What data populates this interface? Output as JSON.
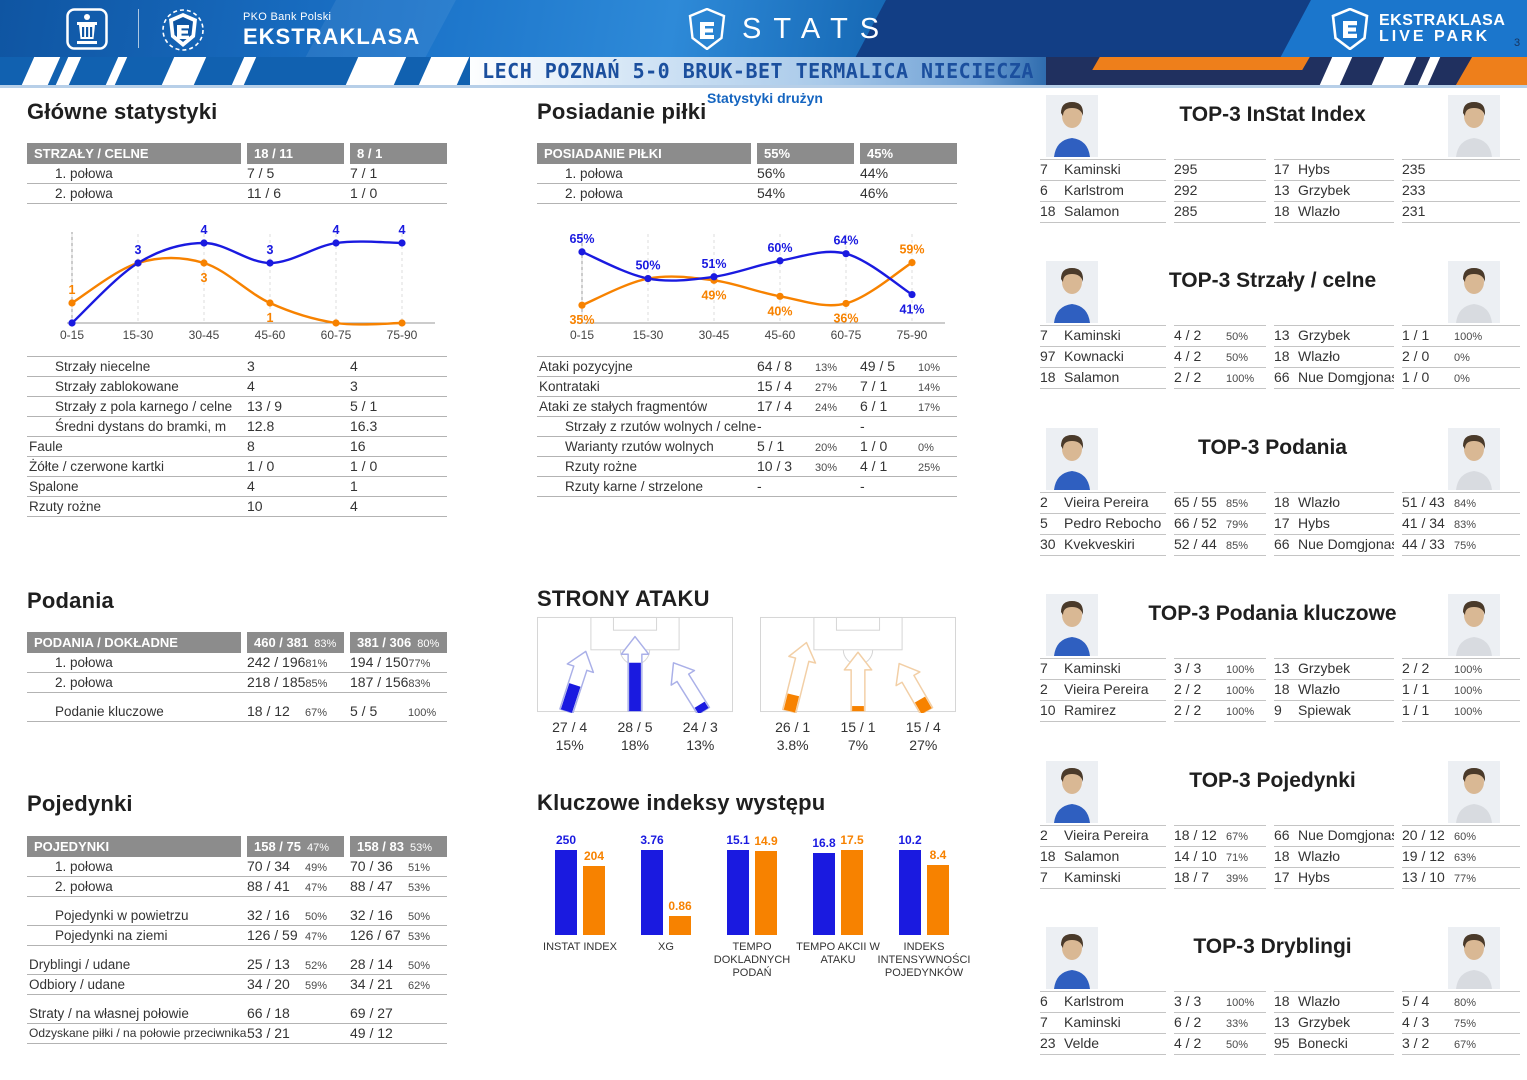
{
  "header": {
    "pko_sub": "PKO Bank Polski",
    "pko_main": "EKSTRAKLASA",
    "stats": "STATS",
    "live_park_line1": "EKSTRAKLASA",
    "live_park_line2": "LIVE PARK",
    "page_number": "3"
  },
  "title_bar": {
    "match": "LECH POZNAŃ 5-0 BRUK-BET TERMALICA NIECIECZA",
    "subtitle": "Statystyki drużyn"
  },
  "colors": {
    "home": "#1a1ae0",
    "away": "#f78200",
    "home_outline": "#aab0e8",
    "away_outline": "#f2cfa6"
  },
  "main_stats": {
    "heading": "Główne statystyki",
    "header": {
      "label": "STRZAŁY / CELNE",
      "home": "18 / 11",
      "away": "8 / 1"
    },
    "half_rows": [
      {
        "label": "1. połowa",
        "home": "7 / 5",
        "away": "7 / 1",
        "indent": true
      },
      {
        "label": "2. połowa",
        "home": "11 / 6",
        "away": "1 / 0",
        "indent": true
      }
    ],
    "chart": {
      "categories": [
        "0-15",
        "15-30",
        "30-45",
        "45-60",
        "60-75",
        "75-90"
      ],
      "ylim": [
        0,
        4
      ],
      "home": {
        "values": [
          0,
          3,
          4,
          3,
          4,
          4
        ],
        "labels": [
          "",
          "3",
          "4",
          "3",
          "4",
          "4"
        ],
        "label_pos": [
          "",
          "above",
          "above",
          "above",
          "above",
          "above"
        ]
      },
      "away": {
        "values": [
          1,
          3,
          3,
          1,
          0,
          0
        ],
        "labels": [
          "1",
          "",
          "3",
          "1",
          "",
          ""
        ],
        "label_pos": [
          "above",
          "",
          "below",
          "below",
          "",
          ""
        ]
      }
    },
    "rows": [
      {
        "label": "Strzały niecelne",
        "home": "3",
        "away": "4",
        "indent": true
      },
      {
        "label": "Strzały zablokowane",
        "home": "4",
        "away": "3",
        "indent": true
      },
      {
        "label": "Strzały z pola karnego / celne",
        "home": "13 / 9",
        "away": "5 / 1",
        "indent": true
      },
      {
        "label": "Średni dystans do bramki, m",
        "home": "12.8",
        "away": "16.3",
        "indent": true
      },
      {
        "label": "Faule",
        "home": "8",
        "away": "16"
      },
      {
        "label": "Żółte / czerwone kartki",
        "home": "1 / 0",
        "away": "1 / 0"
      },
      {
        "label": "Spalone",
        "home": "4",
        "away": "1"
      },
      {
        "label": "Rzuty rożne",
        "home": "10",
        "away": "4"
      }
    ]
  },
  "possession": {
    "heading": "Posiadanie piłki",
    "header": {
      "label": "POSIADANIE PIŁKI",
      "home": "55%",
      "away": "45%"
    },
    "half_rows": [
      {
        "label": "1. połowa",
        "home": "56%",
        "away": "44%",
        "indent": true
      },
      {
        "label": "2. połowa",
        "home": "54%",
        "away": "46%",
        "indent": true
      }
    ],
    "chart": {
      "categories": [
        "0-15",
        "15-30",
        "30-45",
        "45-60",
        "60-75",
        "75-90"
      ],
      "ylim": [
        25,
        70
      ],
      "home": {
        "values": [
          65,
          50,
          51,
          60,
          64,
          41
        ],
        "labels": [
          "65%",
          "50%",
          "51%",
          "60%",
          "64%",
          "41%"
        ],
        "label_pos": [
          "above",
          "above",
          "above",
          "above",
          "above",
          "below"
        ]
      },
      "away": {
        "values": [
          35,
          50,
          49,
          40,
          36,
          59
        ],
        "labels": [
          "35%",
          "",
          "49%",
          "40%",
          "36%",
          "59%"
        ],
        "label_pos": [
          "below",
          "",
          "below",
          "below",
          "below",
          "above"
        ]
      }
    },
    "attack_rows": [
      {
        "label": "Ataki pozycyjne",
        "home": "64 / 8",
        "home_pct": "13%",
        "away": "49 / 5",
        "away_pct": "10%"
      },
      {
        "label": "Kontrataki",
        "home": "15 / 4",
        "home_pct": "27%",
        "away": "7 / 1",
        "away_pct": "14%"
      },
      {
        "label": "Ataki ze stałych fragmentów",
        "home": "17 / 4",
        "home_pct": "24%",
        "away": "6 / 1",
        "away_pct": "17%"
      },
      {
        "label": "Strzały z rzutów wolnych / celne",
        "home": "-",
        "away": "-",
        "indent": true
      },
      {
        "label": "Warianty rzutów wolnych",
        "home": "5 / 1",
        "home_pct": "20%",
        "away": "1 / 0",
        "away_pct": "0%",
        "indent": true
      },
      {
        "label": "Rzuty rożne",
        "home": "10 / 3",
        "home_pct": "30%",
        "away": "4 / 1",
        "away_pct": "25%",
        "indent": true
      },
      {
        "label": "Rzuty karne / strzelone",
        "home": "-",
        "away": "-",
        "indent": true
      }
    ]
  },
  "attack_sides": {
    "heading": "STRONY ATAKU",
    "home": {
      "arrows": [
        {
          "value": "27 / 4",
          "pct": "15%",
          "fill": 0.33
        },
        {
          "value": "28 / 5",
          "pct": "18%",
          "fill": 0.58
        },
        {
          "value": "24 / 3",
          "pct": "13%",
          "fill": 0.09
        }
      ]
    },
    "away": {
      "arrows": [
        {
          "value": "26 / 1",
          "pct": "3.8%",
          "fill": 0.2
        },
        {
          "value": "15 / 1",
          "pct": "7%",
          "fill": 0.06
        },
        {
          "value": "15 / 4",
          "pct": "27%",
          "fill": 0.16
        }
      ]
    }
  },
  "key_indexes": {
    "heading": "Kluczowe indeksy występu",
    "groups": [
      {
        "label": "INSTAT INDEX",
        "home": "250",
        "away": "204",
        "home_v": 250,
        "away_v": 204
      },
      {
        "label": "XG",
        "home": "3.76",
        "away": "0.86",
        "home_v": 3.76,
        "away_v": 0.86
      },
      {
        "label": "TEMPO DOKLADNYCH PODAŃ",
        "home": "15.1",
        "away": "14.9",
        "home_v": 15.1,
        "away_v": 14.9
      },
      {
        "label": "TEMPO AKCII W ATAKU",
        "home": "16.8",
        "away": "17.5",
        "home_v": 16.8,
        "away_v": 17.5
      },
      {
        "label": "INDEKS INTENSYWNOŚCI POJEDYNKÓW",
        "home": "10.2",
        "away": "8.4",
        "home_v": 10.2,
        "away_v": 8.4
      }
    ]
  },
  "passes": {
    "heading": "Podania",
    "header": {
      "label": "PODANIA / DOKŁADNE",
      "home": "460 / 381",
      "home_pct": "83%",
      "away": "381 / 306",
      "away_pct": "80%"
    },
    "rows": [
      {
        "label": "1. połowa",
        "home": "242 / 196",
        "home_pct": "81%",
        "away": "194 / 150",
        "away_pct": "77%",
        "indent": true
      },
      {
        "label": "2. połowa",
        "home": "218 / 185",
        "home_pct": "85%",
        "away": "187 / 156",
        "away_pct": "83%",
        "indent": true
      },
      {
        "label": "Podanie kluczowe",
        "home": "18 / 12",
        "home_pct": "67%",
        "away": "5 / 5",
        "away_pct": "100%",
        "indent": true,
        "gap": true
      }
    ]
  },
  "duels": {
    "heading": "Pojedynki",
    "header": {
      "label": "POJEDYNKI",
      "home": "158 / 75",
      "home_pct": "47%",
      "away": "158 / 83",
      "away_pct": "53%"
    },
    "rows": [
      {
        "label": "1. połowa",
        "home": "70 / 34",
        "home_pct": "49%",
        "away": "70 / 36",
        "away_pct": "51%",
        "indent": true
      },
      {
        "label": "2. połowa",
        "home": "88 / 41",
        "home_pct": "47%",
        "away": "88 / 47",
        "away_pct": "53%",
        "indent": true
      },
      {
        "label": "Pojedynki w powietrzu",
        "home": "32 / 16",
        "home_pct": "50%",
        "away": "32 / 16",
        "away_pct": "50%",
        "indent": true,
        "gap": true
      },
      {
        "label": "Pojedynki na ziemi",
        "home": "126 / 59",
        "home_pct": "47%",
        "away": "126 / 67",
        "away_pct": "53%",
        "indent": true
      },
      {
        "label": "Dryblingi / udane",
        "home": "25 / 13",
        "home_pct": "52%",
        "away": "28 / 14",
        "away_pct": "50%",
        "gap": true
      },
      {
        "label": "Odbiory / udane",
        "home": "34 / 20",
        "home_pct": "59%",
        "away": "34 / 21",
        "away_pct": "62%"
      },
      {
        "label": "Straty / na własnej połowie",
        "home": "66 / 18",
        "away": "69 / 27",
        "gap": true
      },
      {
        "label": "Odzyskane piłki / na połowie przeciwnika",
        "home": "53 / 21",
        "away": "49 / 12",
        "small": true
      }
    ]
  },
  "top3": {
    "sections": [
      {
        "title": "TOP-3 InStat Index",
        "left": [
          {
            "num": "7",
            "name": "Kaminski",
            "value": "295",
            "pct": ""
          },
          {
            "num": "6",
            "name": "Karlstrom",
            "value": "292",
            "pct": ""
          },
          {
            "num": "18",
            "name": "Salamon",
            "value": "285",
            "pct": ""
          }
        ],
        "right": [
          {
            "num": "17",
            "name": "Hybs",
            "value": "235",
            "pct": ""
          },
          {
            "num": "13",
            "name": "Grzybek",
            "value": "233",
            "pct": ""
          },
          {
            "num": "18",
            "name": "Wlazło",
            "value": "231",
            "pct": ""
          }
        ]
      },
      {
        "title": "TOP-3 Strzały / celne",
        "left": [
          {
            "num": "7",
            "name": "Kaminski",
            "value": "4 / 2",
            "pct": "50%"
          },
          {
            "num": "97",
            "name": "Kownacki",
            "value": "4 / 2",
            "pct": "50%"
          },
          {
            "num": "18",
            "name": "Salamon",
            "value": "2 / 2",
            "pct": "100%"
          }
        ],
        "right": [
          {
            "num": "13",
            "name": "Grzybek",
            "value": "1 / 1",
            "pct": "100%"
          },
          {
            "num": "18",
            "name": "Wlazło",
            "value": "2 / 0",
            "pct": "0%"
          },
          {
            "num": "66",
            "name": "Nue Domgjonas",
            "value": "1 / 0",
            "pct": "0%"
          }
        ]
      },
      {
        "title": "TOP-3 Podania",
        "left": [
          {
            "num": "2",
            "name": "Vieira Pereira",
            "value": "65 / 55",
            "pct": "85%"
          },
          {
            "num": "5",
            "name": "Pedro Rebocho",
            "value": "66 / 52",
            "pct": "79%"
          },
          {
            "num": "30",
            "name": "Kvekveskiri",
            "value": "52 / 44",
            "pct": "85%"
          }
        ],
        "right": [
          {
            "num": "18",
            "name": "Wlazło",
            "value": "51 / 43",
            "pct": "84%"
          },
          {
            "num": "17",
            "name": "Hybs",
            "value": "41 / 34",
            "pct": "83%"
          },
          {
            "num": "66",
            "name": "Nue Domgjonas",
            "value": "44 / 33",
            "pct": "75%"
          }
        ]
      },
      {
        "title": "TOP-3 Podania kluczowe",
        "left": [
          {
            "num": "7",
            "name": "Kaminski",
            "value": "3 / 3",
            "pct": "100%"
          },
          {
            "num": "2",
            "name": "Vieira Pereira",
            "value": "2 / 2",
            "pct": "100%"
          },
          {
            "num": "10",
            "name": "Ramirez",
            "value": "2 / 2",
            "pct": "100%"
          }
        ],
        "right": [
          {
            "num": "13",
            "name": "Grzybek",
            "value": "2 / 2",
            "pct": "100%"
          },
          {
            "num": "18",
            "name": "Wlazło",
            "value": "1 / 1",
            "pct": "100%"
          },
          {
            "num": "9",
            "name": "Spiewak",
            "value": "1 / 1",
            "pct": "100%"
          }
        ]
      },
      {
        "title": "TOP-3 Pojedynki",
        "left": [
          {
            "num": "2",
            "name": "Vieira Pereira",
            "value": "18 / 12",
            "pct": "67%"
          },
          {
            "num": "18",
            "name": "Salamon",
            "value": "14 / 10",
            "pct": "71%"
          },
          {
            "num": "7",
            "name": "Kaminski",
            "value": "18 / 7",
            "pct": "39%"
          }
        ],
        "right": [
          {
            "num": "66",
            "name": "Nue Domgjonas",
            "value": "20 / 12",
            "pct": "60%"
          },
          {
            "num": "18",
            "name": "Wlazło",
            "value": "19 / 12",
            "pct": "63%"
          },
          {
            "num": "17",
            "name": "Hybs",
            "value": "13 / 10",
            "pct": "77%"
          }
        ]
      },
      {
        "title": "TOP-3 Dryblingi",
        "left": [
          {
            "num": "6",
            "name": "Karlstrom",
            "value": "3 / 3",
            "pct": "100%"
          },
          {
            "num": "7",
            "name": "Kaminski",
            "value": "6 / 2",
            "pct": "33%"
          },
          {
            "num": "23",
            "name": "Velde",
            "value": "4 / 2",
            "pct": "50%"
          }
        ],
        "right": [
          {
            "num": "18",
            "name": "Wlazło",
            "value": "5 / 4",
            "pct": "80%"
          },
          {
            "num": "13",
            "name": "Grzybek",
            "value": "4 / 3",
            "pct": "75%"
          },
          {
            "num": "95",
            "name": "Bonecki",
            "value": "3 / 2",
            "pct": "67%"
          }
        ]
      }
    ]
  },
  "chart_data": [
    {
      "type": "line",
      "title": "Strzały / celne by interval",
      "x": [
        "0-15",
        "15-30",
        "30-45",
        "45-60",
        "60-75",
        "75-90"
      ],
      "series": [
        {
          "name": "Lech Poznań",
          "values": [
            0,
            3,
            4,
            3,
            4,
            4
          ]
        },
        {
          "name": "Bruk-Bet Termalica Nieciecza",
          "values": [
            1,
            3,
            3,
            1,
            0,
            0
          ]
        }
      ],
      "ylim": [
        0,
        4
      ],
      "legend_position": "none",
      "grid": "dashed-vertical"
    },
    {
      "type": "line",
      "title": "Posiadanie piłki (%) by interval",
      "x": [
        "0-15",
        "15-30",
        "30-45",
        "45-60",
        "60-75",
        "75-90"
      ],
      "series": [
        {
          "name": "Lech Poznań",
          "values": [
            65,
            50,
            51,
            60,
            64,
            41
          ]
        },
        {
          "name": "Bruk-Bet Termalica Nieciecza",
          "values": [
            35,
            50,
            49,
            40,
            36,
            59
          ]
        }
      ],
      "ylim": [
        25,
        70
      ],
      "legend_position": "none",
      "grid": "dashed-vertical"
    },
    {
      "type": "bar",
      "title": "Kluczowe indeksy występu",
      "categories": [
        "INSTAT INDEX",
        "XG",
        "TEMPO DOKLADNYCH PODAŃ",
        "TEMPO AKCII W ATAKU",
        "INDEKS INTENSYWNOŚCI POJEDYNKÓW"
      ],
      "series": [
        {
          "name": "Lech Poznań",
          "values": [
            250,
            3.76,
            15.1,
            16.8,
            10.2
          ]
        },
        {
          "name": "Bruk-Bet Termalica Nieciecza",
          "values": [
            204,
            0.86,
            14.9,
            17.5,
            8.4
          ]
        }
      ]
    },
    {
      "type": "table",
      "title": "Strony ataku",
      "categories": [
        "left-flank",
        "center",
        "right-flank"
      ],
      "series": [
        {
          "name": "Lech Poznań",
          "values": [
            "27 / 4 15%",
            "28 / 5 18%",
            "24 / 3 13%"
          ]
        },
        {
          "name": "Bruk-Bet Termalica Nieciecza",
          "values": [
            "26 / 1 3.8%",
            "15 / 1 7%",
            "15 / 4 27%"
          ]
        }
      ]
    }
  ]
}
